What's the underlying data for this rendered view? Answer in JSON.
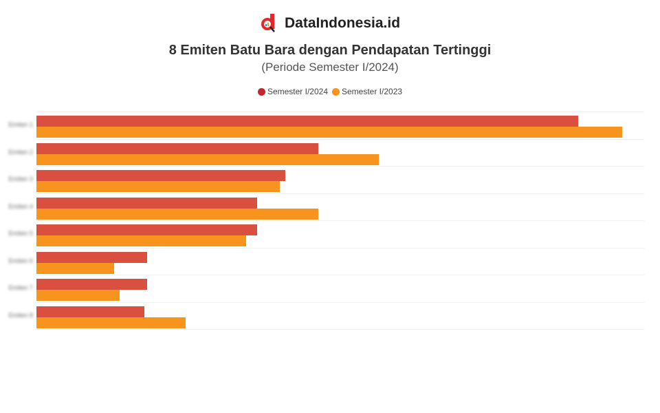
{
  "header": {
    "brand": "DataIndonesia.id",
    "title": "8 Emiten Batu Bara dengan Pendapatan Tertinggi",
    "subtitle": "(Periode Semester I/2024)"
  },
  "legend": [
    {
      "label": "Semester I/2024",
      "color": "#d2443b"
    },
    {
      "label": "Semester I/2023",
      "color": "#f7931e"
    }
  ],
  "chart_data": {
    "type": "bar",
    "orientation": "horizontal",
    "title": "8 Emiten Batu Bara dengan Pendapatan Tertinggi",
    "subtitle": "(Periode Semester I/2024)",
    "categories": [
      "Emiten 1",
      "Emiten 2",
      "Emiten 3",
      "Emiten 4",
      "Emiten 5",
      "Emiten 6",
      "Emiten 7",
      "Emiten 8"
    ],
    "series": [
      {
        "name": "Semester I/2024",
        "color": "#d2443b",
        "values": [
          9.8,
          5.1,
          4.5,
          4.0,
          4.0,
          2.0,
          2.0,
          1.95
        ]
      },
      {
        "name": "Semester I/2023",
        "color": "#f7931e",
        "values": [
          10.6,
          6.2,
          4.4,
          5.1,
          3.8,
          1.4,
          1.5,
          2.7
        ]
      }
    ],
    "value_labels": [
      "",
      "",
      "",
      "",
      "",
      "",
      "",
      ""
    ],
    "xlabel": "",
    "ylabel": "",
    "xlim": [
      0,
      11
    ],
    "xticks": [
      "",
      "",
      "",
      "",
      "",
      "",
      "",
      "",
      "",
      "",
      "",
      ""
    ],
    "grid": true,
    "legend_position": "top-center",
    "notes": "Category names, axis tick values, data labels, x-axis title and footer text are blurred and unreadable in the source; bar values are estimated on a generic 0-11 scale from pixel positions."
  },
  "footer": {
    "source": "",
    "note": ""
  }
}
